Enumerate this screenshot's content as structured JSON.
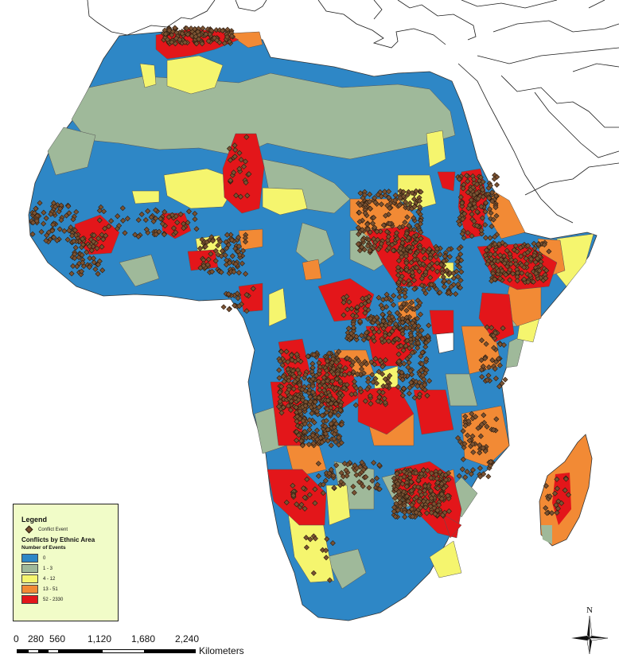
{
  "map": {
    "subject": "Africa",
    "colors": {
      "ocean": "#ffffff",
      "outline": "#1a1a1a",
      "class_0": "#2e87c6",
      "class_1_3": "#9fb99a",
      "class_4_12": "#f5f56e",
      "class_13_51": "#f28a35",
      "class_52_2330": "#e3161a",
      "event_dot": "#7a5232"
    }
  },
  "legend": {
    "title": "Legend",
    "point_label": "Conflict Event",
    "layer_title": "Conflicts by Ethnic Area",
    "subtitle": "Number of Events",
    "classes": [
      {
        "label": "0",
        "color": "#2e87c6"
      },
      {
        "label": "1 - 3",
        "color": "#9fb99a"
      },
      {
        "label": "4 - 12",
        "color": "#f5f56e"
      },
      {
        "label": "13 - 51",
        "color": "#f28a35"
      },
      {
        "label": "52 - 2330",
        "color": "#e3161a"
      }
    ]
  },
  "scale_bar": {
    "ticks": [
      "0",
      "280",
      "560",
      "1,120",
      "1,680",
      "2,240"
    ],
    "unit": "Kilometers"
  },
  "north_arrow": {
    "label": "N"
  }
}
